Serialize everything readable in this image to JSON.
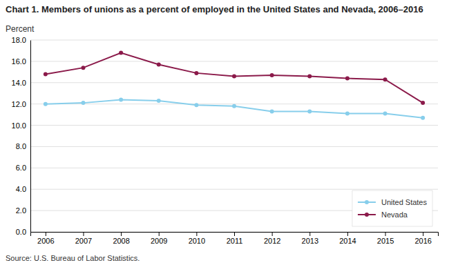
{
  "chart_data": {
    "type": "line",
    "title": "Chart 1. Members of unions as a percent of employed in the United States and Nevada, 2006–2016",
    "y_label": "Percent",
    "source": "Source: U.S. Bureau of Labor Statistics.",
    "x": [
      2006,
      2007,
      2008,
      2009,
      2010,
      2011,
      2012,
      2013,
      2014,
      2015,
      2016
    ],
    "series": [
      {
        "name": "United States",
        "color": "#87CEEB",
        "marker": "circle",
        "values": [
          12.0,
          12.1,
          12.4,
          12.3,
          11.9,
          11.8,
          11.3,
          11.3,
          11.1,
          11.1,
          10.7
        ]
      },
      {
        "name": "Nevada",
        "color": "#8B1A4A",
        "marker": "circle",
        "values": [
          14.8,
          15.4,
          16.8,
          15.7,
          14.9,
          14.6,
          14.7,
          14.6,
          14.4,
          14.3,
          12.1
        ]
      }
    ],
    "xlim": [
      2005.6,
      2016.4
    ],
    "xticks": [
      2006,
      2007,
      2008,
      2009,
      2010,
      2011,
      2012,
      2013,
      2014,
      2015,
      2016
    ],
    "ylim": [
      0.0,
      18.0
    ],
    "yticks": [
      {
        "value": 0.0,
        "label": "0.0"
      },
      {
        "value": 2.0,
        "label": "2.0"
      },
      {
        "value": 4.0,
        "label": "4.0"
      },
      {
        "value": 6.0,
        "label": "6.0"
      },
      {
        "value": 8.0,
        "label": "8.0"
      },
      {
        "value": 10.0,
        "label": "10.0"
      },
      {
        "value": 12.0,
        "label": "12.0"
      },
      {
        "value": 14.0,
        "label": "14.0"
      },
      {
        "value": 16.0,
        "label": "16.0"
      },
      {
        "value": 18.0,
        "label": "18.0"
      }
    ],
    "grid": true,
    "legend": "lower right"
  }
}
